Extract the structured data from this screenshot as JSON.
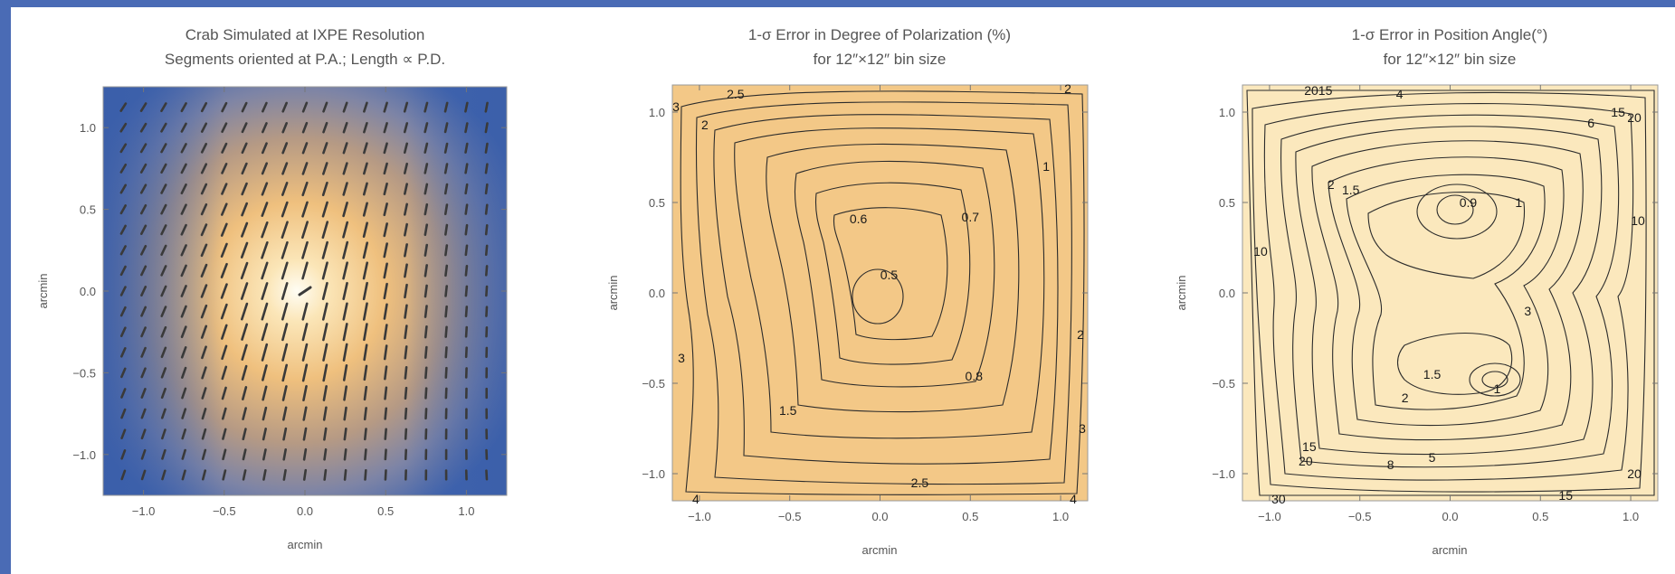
{
  "colors": {
    "background_border": "#4a6bb5",
    "low": "#2f56a6",
    "mid": "#8c8090",
    "high": "#fff4d2",
    "contour_line": "#2b2b2b"
  },
  "chart_data": [
    {
      "type": "heatmap",
      "title": "Crab Simulated at IXPE Resolution",
      "subtitle": "Segments oriented at P.A.; Length ∝ P.D.",
      "xlabel": "arcmin",
      "ylabel": "arcmin",
      "xlim": [
        -1.25,
        1.25
      ],
      "ylim": [
        -1.25,
        1.25
      ],
      "x_ticks": [
        -1.0,
        -0.5,
        0.0,
        0.5,
        1.0
      ],
      "y_ticks": [
        -1.0,
        -0.5,
        0.0,
        0.5,
        1.0
      ],
      "x_tick_labels": [
        "−1.0",
        "−0.5",
        "0.0",
        "0.5",
        "1.0"
      ],
      "y_tick_labels": [
        "−1.0",
        "−0.5",
        "0.0",
        "0.5",
        "1.0"
      ],
      "grid": false,
      "colormap": "blue-to-orange (intensity)",
      "peak": [
        0.0,
        0.0
      ],
      "segments": "polarization vectors on 0.125 arcmin grid, oriented ~75° (P.A.), length ∝ P.D."
    },
    {
      "type": "heatmap",
      "title": "1-σ Error in Degree of Polarization (%)",
      "subtitle": "for 12″×12″ bin size",
      "xlabel": "arcmin",
      "ylabel": "arcmin",
      "xlim": [
        -1.15,
        1.15
      ],
      "ylim": [
        -1.15,
        1.15
      ],
      "x_ticks": [
        -1.0,
        -0.5,
        0.0,
        0.5,
        1.0
      ],
      "y_ticks": [
        -1.0,
        -0.5,
        0.0,
        0.5,
        1.0
      ],
      "x_tick_labels": [
        "−1.0",
        "−0.5",
        "0.0",
        "0.5",
        "1.0"
      ],
      "y_tick_labels": [
        "−1.0",
        "−0.5",
        "0.0",
        "0.5",
        "1.0"
      ],
      "grid": false,
      "levels": [
        0.5,
        0.6,
        0.7,
        0.8,
        1,
        1.5,
        2,
        2.5,
        3,
        4
      ],
      "contour_labels": [
        {
          "text": "0.5",
          "x": 0.05,
          "y": 0.1
        },
        {
          "text": "0.6",
          "x": -0.12,
          "y": 0.41
        },
        {
          "text": "0.7",
          "x": 0.5,
          "y": 0.42
        },
        {
          "text": "0.8",
          "x": 0.52,
          "y": -0.46
        },
        {
          "text": "1",
          "x": 0.92,
          "y": 0.7
        },
        {
          "text": "1.5",
          "x": -0.51,
          "y": -0.65
        },
        {
          "text": "2",
          "x": -0.97,
          "y": 0.93
        },
        {
          "text": "2",
          "x": 1.11,
          "y": -0.23
        },
        {
          "text": "2.5",
          "x": -0.8,
          "y": 1.1
        },
        {
          "text": "2.5",
          "x": 0.22,
          "y": -1.05
        },
        {
          "text": "2",
          "x": 1.04,
          "y": 1.13
        },
        {
          "text": "3",
          "x": -1.13,
          "y": 1.03
        },
        {
          "text": "3",
          "x": -1.1,
          "y": -0.36
        },
        {
          "text": "3",
          "x": 1.12,
          "y": -0.75
        },
        {
          "text": "4",
          "x": -1.02,
          "y": -1.14
        },
        {
          "text": "4",
          "x": 1.07,
          "y": -1.14
        }
      ]
    },
    {
      "type": "heatmap",
      "title": "1-σ Error in Position Angle(°)",
      "subtitle": "for 12″×12″ bin size",
      "xlabel": "arcmin",
      "ylabel": "arcmin",
      "xlim": [
        -1.15,
        1.15
      ],
      "ylim": [
        -1.15,
        1.15
      ],
      "x_ticks": [
        -1.0,
        -0.5,
        0.0,
        0.5,
        1.0
      ],
      "y_ticks": [
        -1.0,
        -0.5,
        0.0,
        0.5,
        1.0
      ],
      "x_tick_labels": [
        "−1.0",
        "−0.5",
        "0.0",
        "0.5",
        "1.0"
      ],
      "y_tick_labels": [
        "−1.0",
        "−0.5",
        "0.0",
        "0.5",
        "1.0"
      ],
      "grid": false,
      "levels": [
        0.9,
        1,
        1.5,
        2,
        3,
        4,
        5,
        6,
        8,
        10,
        15,
        20,
        30
      ],
      "contour_labels": [
        {
          "text": "0.9",
          "x": 0.1,
          "y": 0.5
        },
        {
          "text": "1",
          "x": 0.38,
          "y": 0.5
        },
        {
          "text": "1.5",
          "x": -0.55,
          "y": 0.57
        },
        {
          "text": "2",
          "x": -0.66,
          "y": 0.6
        },
        {
          "text": "3",
          "x": 0.43,
          "y": -0.1
        },
        {
          "text": "4",
          "x": -0.28,
          "y": 1.1
        },
        {
          "text": "6",
          "x": 0.78,
          "y": 0.94
        },
        {
          "text": "10",
          "x": 1.04,
          "y": 0.4
        },
        {
          "text": "10",
          "x": -1.05,
          "y": 0.23
        },
        {
          "text": "15",
          "x": 0.93,
          "y": 1.0
        },
        {
          "text": "20",
          "x": 1.02,
          "y": 0.97
        },
        {
          "text": "2015",
          "x": -0.73,
          "y": 1.12
        },
        {
          "text": "1.5",
          "x": -0.1,
          "y": -0.45
        },
        {
          "text": "1",
          "x": 0.26,
          "y": -0.53
        },
        {
          "text": "2",
          "x": -0.25,
          "y": -0.58
        },
        {
          "text": "5",
          "x": -0.1,
          "y": -0.91
        },
        {
          "text": "8",
          "x": -0.33,
          "y": -0.95
        },
        {
          "text": "15",
          "x": -0.78,
          "y": -0.85
        },
        {
          "text": "20",
          "x": -0.8,
          "y": -0.93
        },
        {
          "text": "20",
          "x": 1.02,
          "y": -1.0
        },
        {
          "text": "15",
          "x": 0.64,
          "y": -1.12
        },
        {
          "text": "30",
          "x": -0.95,
          "y": -1.14
        }
      ]
    }
  ]
}
